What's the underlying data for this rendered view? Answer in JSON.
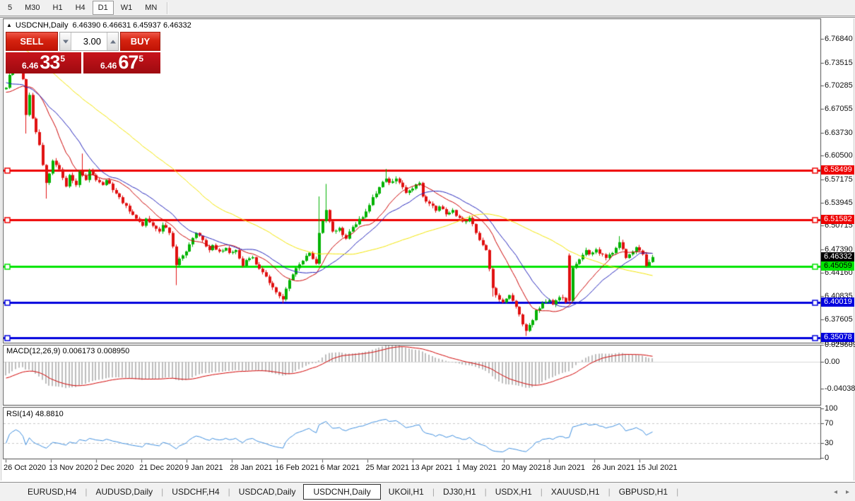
{
  "toolbar": {
    "timeframes": [
      "5",
      "M30",
      "H1",
      "H4",
      "D1",
      "W1",
      "MN"
    ],
    "active_timeframe": "D1"
  },
  "window": {
    "title_marker": "▲",
    "symbol_period": "USDCNH,Daily",
    "ohlc_summary": "6.46390 6.46631 6.45937 6.46332"
  },
  "trade_panel": {
    "sell_label": "SELL",
    "buy_label": "BUY",
    "volume": "3.00",
    "sell_price": {
      "prefix": "6.46",
      "big": "33",
      "sup": "5"
    },
    "buy_price": {
      "prefix": "6.46",
      "big": "67",
      "sup": "5"
    }
  },
  "indicators": {
    "macd": {
      "label": "MACD(12,26,9) 0.006173 0.008950",
      "axis_ticks": [
        "0.025609",
        "0.00",
        "-0.040386"
      ],
      "tick_values": [
        0.025609,
        0.0,
        -0.040386
      ]
    },
    "rsi": {
      "label": "RSI(14) 48.8810",
      "axis_ticks": [
        "100",
        "70",
        "30",
        "0"
      ],
      "tick_values": [
        100,
        70,
        30,
        0
      ]
    }
  },
  "price_axis": {
    "ticks": [
      "6.76840",
      "6.73515",
      "6.70285",
      "6.67055",
      "6.63730",
      "6.60500",
      "6.57175",
      "6.53945",
      "6.50715",
      "6.47390",
      "6.44160",
      "6.40835",
      "6.37605",
      "6.34375"
    ],
    "current_price_label": "6.46332",
    "current_price": 6.46332
  },
  "date_axis": {
    "labels": [
      "26 Oct 2020",
      "13 Nov 2020",
      "2 Dec 2020",
      "21 Dec 2020",
      "9 Jan 2021",
      "28 Jan 2021",
      "16 Feb 2021",
      "6 Mar 2021",
      "25 Mar 2021",
      "13 Apr 2021",
      "1 May 2021",
      "20 May 2021",
      "8 Jun 2021",
      "26 Jun 2021",
      "15 Jul 2021"
    ]
  },
  "tabs": {
    "items": [
      "EURUSD,H4",
      "AUDUSD,Daily",
      "USDCHF,H4",
      "USDCAD,Daily",
      "USDCNH,Daily",
      "UKOil,H1",
      "DJ30,H1",
      "USDX,H1",
      "XAUUSD,H1",
      "GBPUSD,H1"
    ],
    "active": "USDCNH,Daily",
    "scroll_left_icon": "◂",
    "scroll_right_icon": "▸"
  },
  "chart_data": {
    "type": "candlestick",
    "symbol": "USDCNH",
    "period": "Daily",
    "visible_bars": 195,
    "y_axis_range": [
      6.34375,
      6.7684
    ],
    "colors": {
      "candle_up": "#00b200",
      "candle_down": "#e01010",
      "ma_fast": "#cc0000",
      "ma_mid": "#2424bb",
      "ma_slow": "#f2e500",
      "macd_histogram": "#bdbdbd",
      "macd_signal": "#d00000",
      "rsi_line": "#3e8ede",
      "frame": "#4d4d4d"
    },
    "moving_averages": [
      {
        "type": "sma",
        "period": 13,
        "color_key": "ma_fast"
      },
      {
        "type": "sma",
        "period": 21,
        "color_key": "ma_mid"
      },
      {
        "type": "sma",
        "period": 55,
        "color_key": "ma_slow"
      }
    ],
    "macd_params": {
      "fast": 12,
      "slow": 26,
      "signal": 9,
      "last_main": 0.006173,
      "last_signal": 0.00895
    },
    "rsi_params": {
      "period": 14,
      "last": 48.881,
      "levels": [
        70,
        30
      ]
    },
    "horizontal_lines": [
      {
        "price": 6.58499,
        "label": "6.58499",
        "color": "#ee0000",
        "text": "#ffffff"
      },
      {
        "price": 6.51582,
        "label": "6.51582",
        "color": "#ee0000",
        "text": "#ffffff"
      },
      {
        "price": 6.45059,
        "label": "6.45059",
        "color": "#00e400",
        "text": "#000000"
      },
      {
        "price": 6.40019,
        "label": "6.40019",
        "color": "#0000dd",
        "text": "#ffffff"
      },
      {
        "price": 6.35078,
        "label": "6.35078",
        "color": "#0000dd",
        "text": "#ffffff"
      }
    ],
    "prehistory_keypoints": [
      [
        -60,
        6.915
      ],
      [
        -50,
        6.858
      ],
      [
        -40,
        6.812
      ],
      [
        -30,
        6.778
      ],
      [
        -20,
        6.744
      ],
      [
        -12,
        6.71
      ],
      [
        -6,
        6.68
      ],
      [
        -1,
        6.698
      ]
    ],
    "price_keypoints": [
      [
        0,
        6.7
      ],
      [
        1,
        6.718
      ],
      [
        3,
        6.731
      ],
      [
        4,
        6.726
      ],
      [
        5,
        6.712
      ],
      [
        6,
        6.662
      ],
      [
        7,
        6.69
      ],
      [
        8,
        6.657
      ],
      [
        9,
        6.638
      ],
      [
        10,
        6.62
      ],
      [
        11,
        6.592
      ],
      [
        12,
        6.567
      ],
      [
        13,
        6.58
      ],
      [
        14,
        6.598
      ],
      [
        15,
        6.592
      ],
      [
        16,
        6.586
      ],
      [
        17,
        6.574
      ],
      [
        18,
        6.562
      ],
      [
        19,
        6.578
      ],
      [
        20,
        6.57
      ],
      [
        21,
        6.564
      ],
      [
        22,
        6.583
      ],
      [
        24,
        6.571
      ],
      [
        25,
        6.584
      ],
      [
        27,
        6.571
      ],
      [
        29,
        6.564
      ],
      [
        30,
        6.571
      ],
      [
        32,
        6.557
      ],
      [
        34,
        6.547
      ],
      [
        36,
        6.535
      ],
      [
        37,
        6.527
      ],
      [
        39,
        6.517
      ],
      [
        41,
        6.507
      ],
      [
        42,
        6.517
      ],
      [
        44,
        6.507
      ],
      [
        46,
        6.499
      ],
      [
        47,
        6.508
      ],
      [
        49,
        6.497
      ],
      [
        50,
        6.478
      ],
      [
        51,
        6.452
      ],
      [
        52,
        6.461
      ],
      [
        54,
        6.471
      ],
      [
        55,
        6.481
      ],
      [
        57,
        6.497
      ],
      [
        59,
        6.487
      ],
      [
        61,
        6.473
      ],
      [
        62,
        6.48
      ],
      [
        64,
        6.471
      ],
      [
        66,
        6.476
      ],
      [
        67,
        6.469
      ],
      [
        69,
        6.473
      ],
      [
        71,
        6.451
      ],
      [
        72,
        6.459
      ],
      [
        74,
        6.463
      ],
      [
        76,
        6.447
      ],
      [
        78,
        6.436
      ],
      [
        79,
        6.427
      ],
      [
        81,
        6.414
      ],
      [
        83,
        6.404
      ],
      [
        84,
        6.419
      ],
      [
        86,
        6.439
      ],
      [
        88,
        6.453
      ],
      [
        89,
        6.458
      ],
      [
        91,
        6.469
      ],
      [
        93,
        6.454
      ],
      [
        94,
        6.497
      ],
      [
        96,
        6.529
      ],
      [
        97,
        6.513
      ],
      [
        98,
        6.499
      ],
      [
        100,
        6.504
      ],
      [
        102,
        6.489
      ],
      [
        103,
        6.499
      ],
      [
        105,
        6.509
      ],
      [
        107,
        6.519
      ],
      [
        108,
        6.527
      ],
      [
        110,
        6.547
      ],
      [
        112,
        6.561
      ],
      [
        114,
        6.573
      ],
      [
        115,
        6.567
      ],
      [
        117,
        6.573
      ],
      [
        119,
        6.561
      ],
      [
        120,
        6.553
      ],
      [
        122,
        6.559
      ],
      [
        124,
        6.567
      ],
      [
        125,
        6.548
      ],
      [
        127,
        6.538
      ],
      [
        129,
        6.528
      ],
      [
        130,
        6.534
      ],
      [
        132,
        6.523
      ],
      [
        134,
        6.529
      ],
      [
        136,
        6.518
      ],
      [
        137,
        6.513
      ],
      [
        139,
        6.518
      ],
      [
        141,
        6.497
      ],
      [
        142,
        6.487
      ],
      [
        144,
        6.473
      ],
      [
        146,
        6.42
      ],
      [
        147,
        6.41
      ],
      [
        149,
        6.4
      ],
      [
        151,
        6.41
      ],
      [
        152,
        6.402
      ],
      [
        154,
        6.383
      ],
      [
        156,
        6.36
      ],
      [
        158,
        6.375
      ],
      [
        159,
        6.389
      ],
      [
        161,
        6.399
      ],
      [
        163,
        6.403
      ],
      [
        164,
        6.397
      ],
      [
        166,
        6.407
      ],
      [
        168,
        6.4
      ],
      [
        169,
        6.402
      ],
      [
        170,
        6.448
      ],
      [
        172,
        6.46
      ],
      [
        174,
        6.473
      ],
      [
        175,
        6.467
      ],
      [
        177,
        6.474
      ],
      [
        179,
        6.467
      ],
      [
        180,
        6.462
      ],
      [
        182,
        6.469
      ],
      [
        184,
        6.484
      ],
      [
        186,
        6.462
      ],
      [
        187,
        6.467
      ],
      [
        189,
        6.477
      ],
      [
        191,
        6.467
      ],
      [
        192,
        6.451
      ],
      [
        194,
        6.4633
      ]
    ],
    "wick_overrides": [
      [
        3,
        "h",
        6.7475
      ],
      [
        6,
        "l",
        6.636
      ],
      [
        12,
        "l",
        6.545
      ],
      [
        23,
        "h",
        6.608
      ],
      [
        51,
        "l",
        6.424
      ],
      [
        83,
        "l",
        6.3985
      ],
      [
        94,
        "h",
        6.548
      ],
      [
        96,
        "h",
        6.5655
      ],
      [
        114,
        "h",
        6.5865
      ],
      [
        146,
        "l",
        6.408
      ],
      [
        156,
        "l",
        6.353
      ],
      [
        169,
        "h",
        6.4665
      ],
      [
        169,
        "l",
        6.3985
      ],
      [
        184,
        "h",
        6.4925
      ],
      [
        194,
        "l",
        6.4555
      ]
    ],
    "open_overrides": [
      [
        169,
        6.4655
      ]
    ]
  }
}
